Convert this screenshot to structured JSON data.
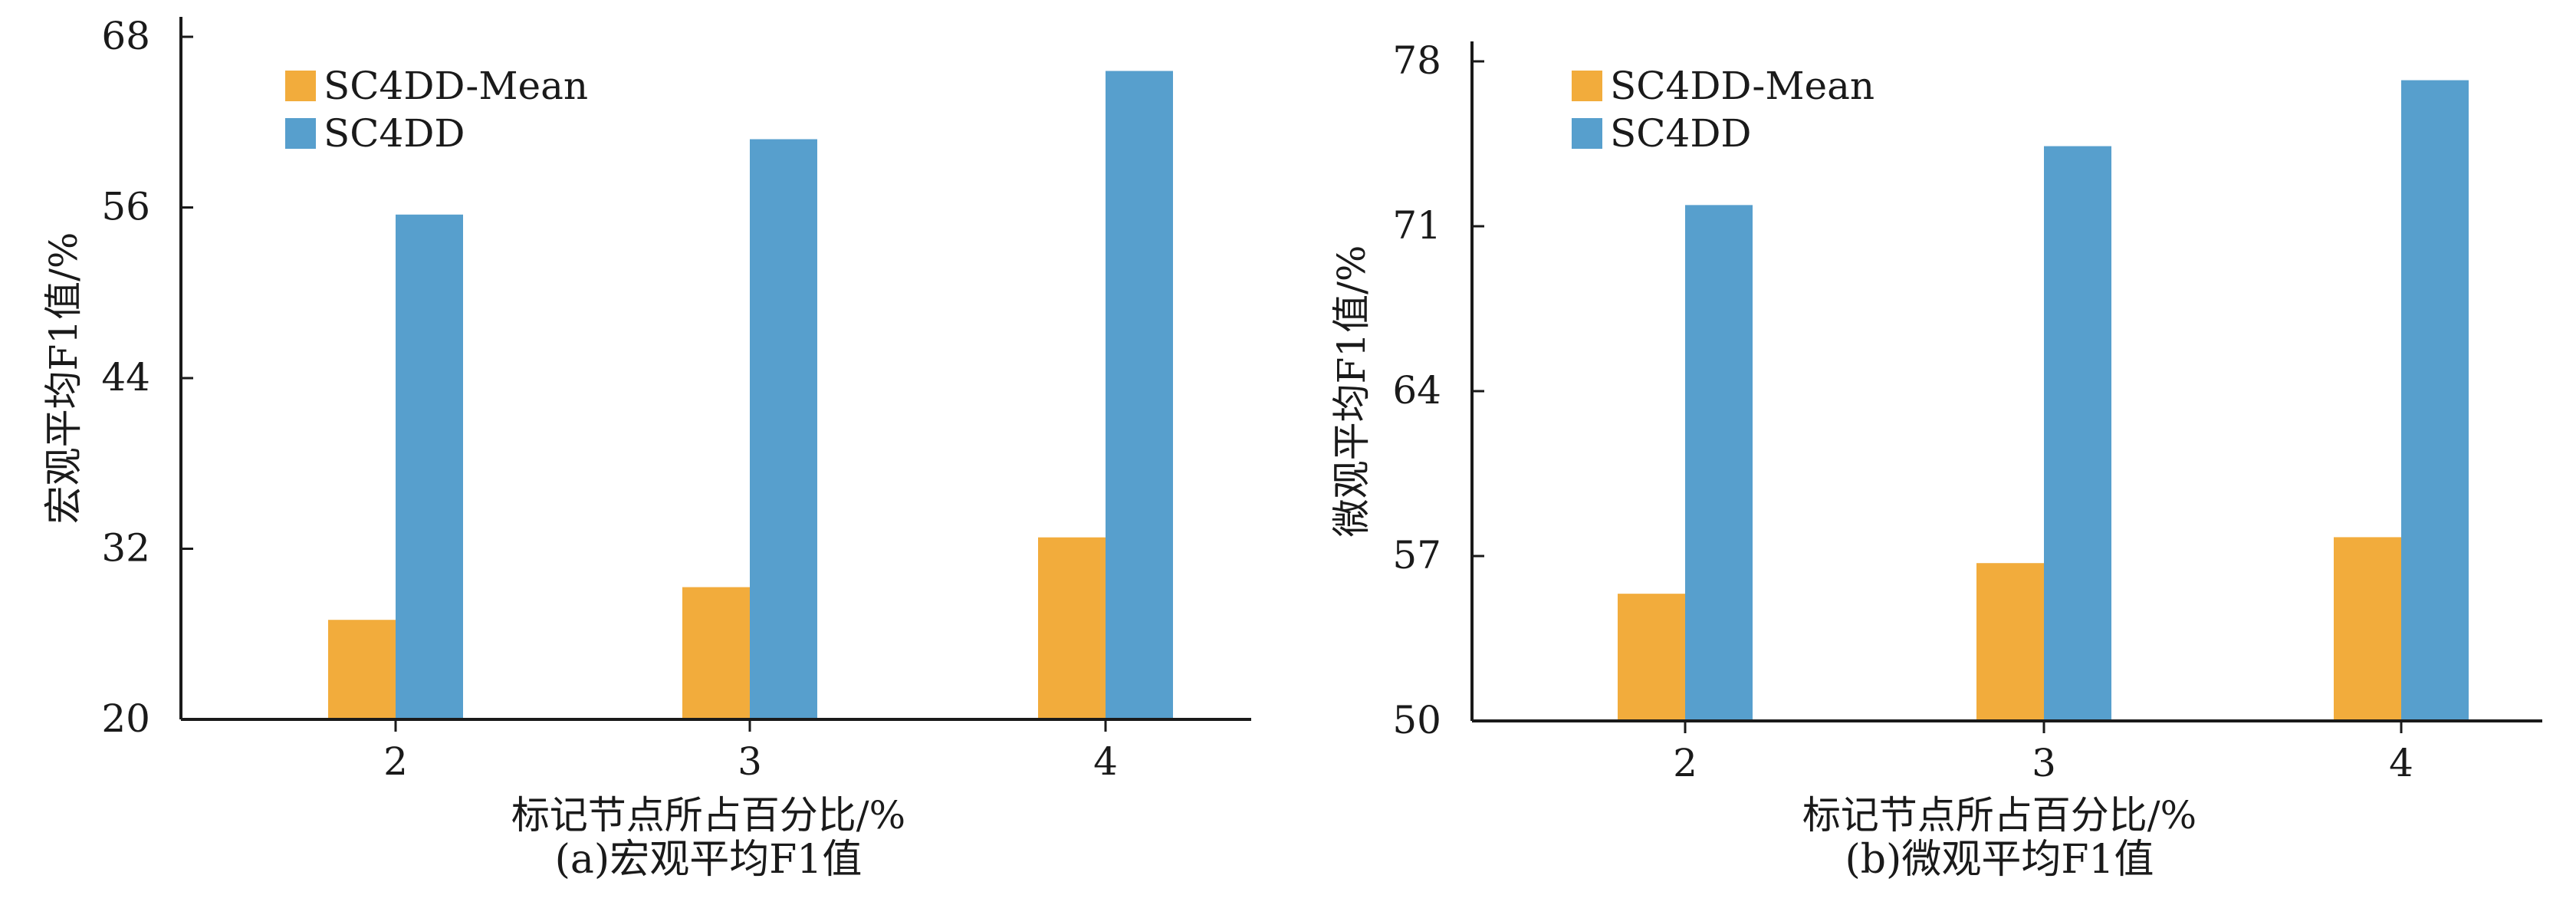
{
  "colors": {
    "mean": "#F2AC3C",
    "full": "#579FCD",
    "axis": "#1a1a1a"
  },
  "chart_data": [
    {
      "type": "bar",
      "categories": [
        "2",
        "3",
        "4"
      ],
      "series": [
        {
          "name": "SC4DD-Mean",
          "values": [
            27.0,
            29.3,
            32.8
          ]
        },
        {
          "name": "SC4DD",
          "values": [
            55.5,
            60.8,
            65.6
          ]
        }
      ],
      "xlabel": "标记节点所占百分比/%",
      "ylabel": "宏观平均F1值",
      "ylabel_unit": "/%",
      "ylim": [
        20,
        68
      ],
      "yticks": [
        "20",
        "32",
        "44",
        "56",
        "68"
      ],
      "caption": "(a)宏观平均F1值",
      "legend_position": "top-left",
      "grid": false
    },
    {
      "type": "bar",
      "categories": [
        "2",
        "3",
        "4"
      ],
      "series": [
        {
          "name": "SC4DD-Mean",
          "values": [
            55.4,
            56.7,
            57.8
          ]
        },
        {
          "name": "SC4DD",
          "values": [
            71.9,
            74.4,
            77.2
          ]
        }
      ],
      "xlabel": "标记节点所占百分比/%",
      "ylabel": "微观平均F1值",
      "ylabel_unit": "/%",
      "ylim": [
        50,
        78
      ],
      "yticks": [
        "50",
        "57",
        "64",
        "71",
        "78"
      ],
      "caption": "(b)微观平均F1值",
      "legend_position": "top-left",
      "grid": false
    }
  ]
}
